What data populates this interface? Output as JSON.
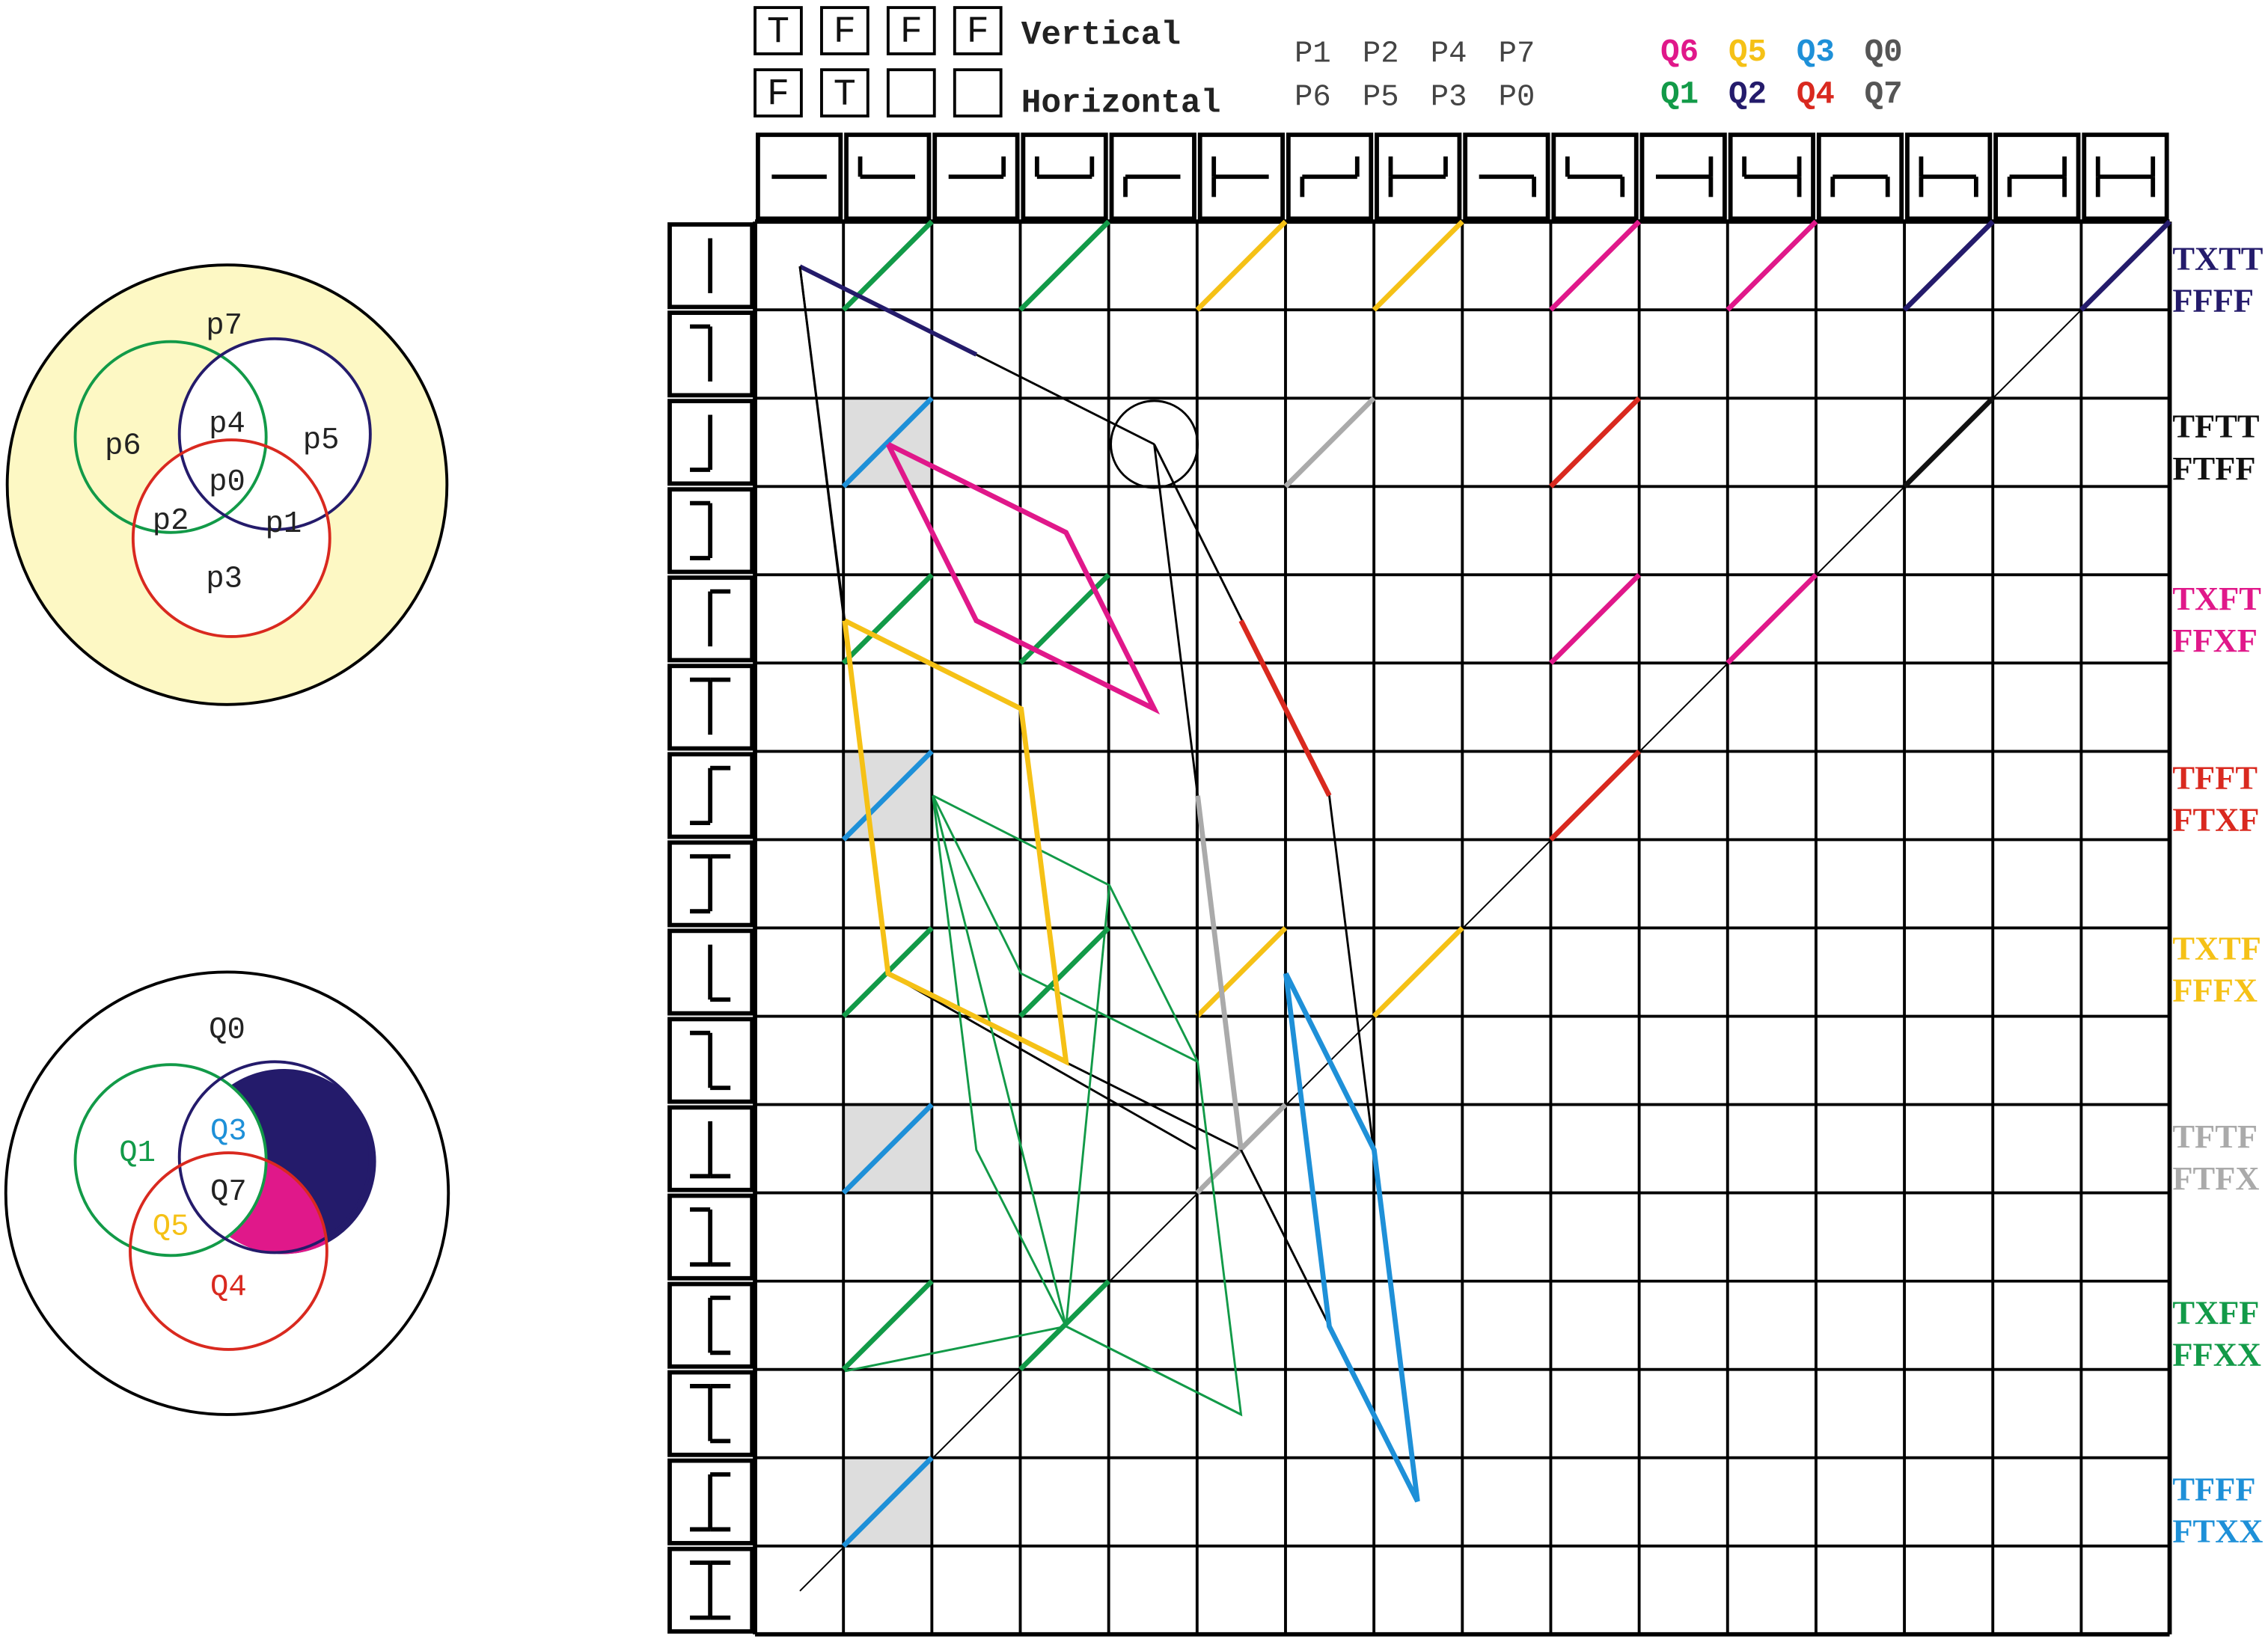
{
  "legend": {
    "vertical_boxes": [
      "T",
      "F",
      "F",
      "F"
    ],
    "horizontal_boxes": [
      "F",
      "T"
    ],
    "vertical": "Vertical",
    "horizontal": "Horizontal"
  },
  "p_labels": [
    [
      "P1",
      "P2",
      "P4",
      "P7"
    ],
    [
      "P6",
      "P5",
      "P3",
      "P0"
    ]
  ],
  "q_labels": [
    [
      "Q6",
      "Q5",
      "Q3",
      "Q0"
    ],
    [
      "Q1",
      "Q2",
      "Q4",
      "Q7"
    ]
  ],
  "venn_p": [
    "p7",
    "p6",
    "p4",
    "p5",
    "p0",
    "p2",
    "p1",
    "p3"
  ],
  "venn_q": [
    "Q0",
    "Q1",
    "Q3",
    "Q7",
    "Q5",
    "Q4"
  ],
  "row_labels": [
    [
      "TXTT",
      "FFFF"
    ],
    [
      "TFTT",
      "FTFF"
    ],
    [
      "TXFT",
      "FFXF"
    ],
    [
      "TFFT",
      "FTXF"
    ],
    [
      "TXTF",
      "FFFX"
    ],
    [
      "TFTF",
      "FTFX"
    ],
    [
      "TXFF",
      "FFXX"
    ],
    [
      "TFFF",
      "FTXX"
    ]
  ]
}
